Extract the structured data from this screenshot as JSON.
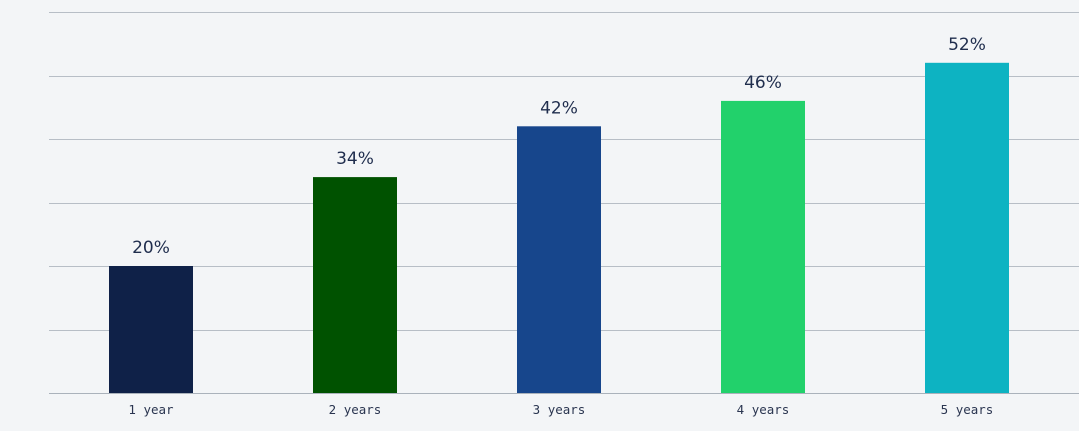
{
  "chart_data": {
    "type": "bar",
    "categories": [
      "1 year",
      "2 years",
      "3 years",
      "4 years",
      "5 years"
    ],
    "values": [
      20,
      34,
      42,
      46,
      52
    ],
    "value_labels": [
      "20%",
      "34%",
      "42%",
      "46%",
      "52%"
    ],
    "bar_colors": [
      "#0f2148",
      "#005200",
      "#17468c",
      "#22d16b",
      "#0db3c2"
    ],
    "title": "",
    "xlabel": "",
    "ylabel": "",
    "ylim": [
      0,
      60
    ],
    "ytick_step": 10,
    "grid": true,
    "legend": "none"
  }
}
